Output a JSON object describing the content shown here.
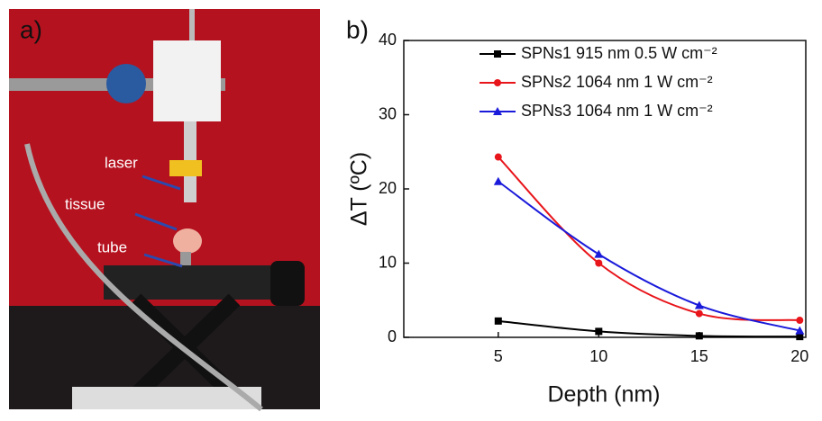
{
  "photo": {
    "label": "a)",
    "annotations": [
      "laser",
      "tissue",
      "tube"
    ]
  },
  "chart_data": {
    "type": "line",
    "panel_label": "b)",
    "xlabel": "Depth (nm)",
    "ylabel": "ΔT (ºC)",
    "x": [
      5,
      10,
      15,
      20
    ],
    "series": [
      {
        "name": "SPNs1 915 nm 0.5 W cm⁻²",
        "color": "#000000",
        "marker": "square",
        "values": [
          2.2,
          0.8,
          0.2,
          0.1
        ]
      },
      {
        "name": "SPNs2 1064 nm 1 W cm⁻²",
        "color": "#e8151b",
        "marker": "circle",
        "values": [
          24.3,
          10,
          3.2,
          2.3
        ]
      },
      {
        "name": "SPNs3 1064 nm 1 W cm⁻²",
        "color": "#1a1adb",
        "marker": "triangle",
        "values": [
          21,
          11.2,
          4.3,
          0.9
        ]
      }
    ],
    "xlim": [
      0.3,
      20.3
    ],
    "xticks": [
      5,
      10,
      15,
      20
    ],
    "ylim": [
      0,
      40
    ],
    "yticks": [
      0,
      10,
      20,
      30,
      40
    ],
    "legend": "upper right"
  }
}
